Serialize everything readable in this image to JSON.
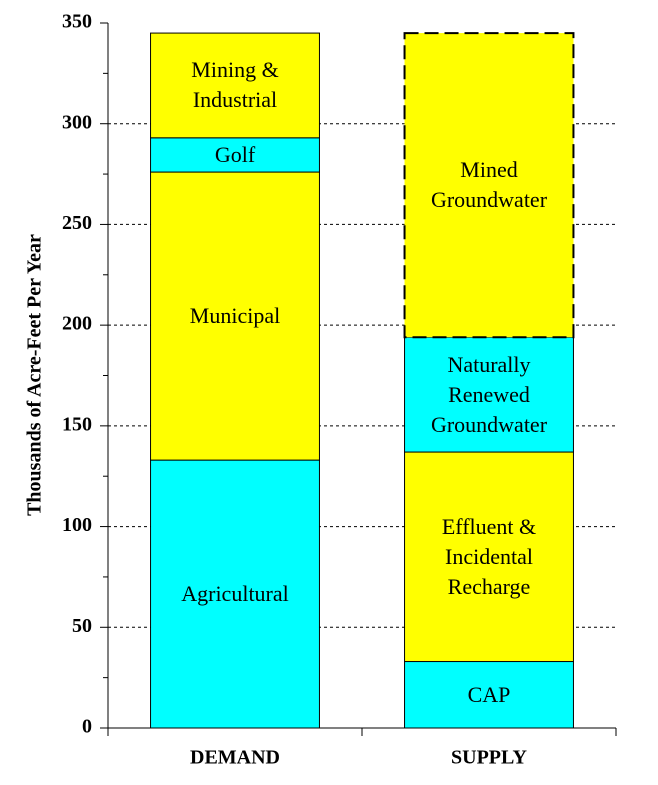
{
  "chart_data": {
    "type": "stacked_bar",
    "ylabel": "Thousands of Acre-Feet Per Year",
    "categories": [
      "DEMAND",
      "SUPPLY"
    ],
    "series": [
      {
        "name": "Agricultural",
        "color": "#00ffff",
        "values": [
          133,
          null
        ]
      },
      {
        "name": "Municipal",
        "color": "#ffff00",
        "values": [
          143,
          null
        ]
      },
      {
        "name": "Golf",
        "color": "#00ffff",
        "values": [
          17,
          null
        ]
      },
      {
        "name": "Mining & Industrial",
        "color": "#ffff00",
        "values": [
          52,
          null
        ]
      },
      {
        "name": "CAP",
        "color": "#00ffff",
        "values": [
          null,
          33
        ]
      },
      {
        "name": "Effluent & Incidental Recharge",
        "color": "#ffff00",
        "values": [
          null,
          104
        ]
      },
      {
        "name": "Naturally Renewed Groundwater",
        "color": "#00ffff",
        "values": [
          null,
          57
        ]
      },
      {
        "name": "Mined Groundwater",
        "color": "#ffff00",
        "values": [
          null,
          151
        ],
        "dashed": true
      }
    ],
    "ylim": [
      0,
      350
    ],
    "yticks": [
      0,
      50,
      100,
      150,
      200,
      250,
      300,
      350
    ],
    "yminorticks": [
      25,
      75,
      125,
      175,
      225,
      275,
      325
    ],
    "grid": true
  }
}
